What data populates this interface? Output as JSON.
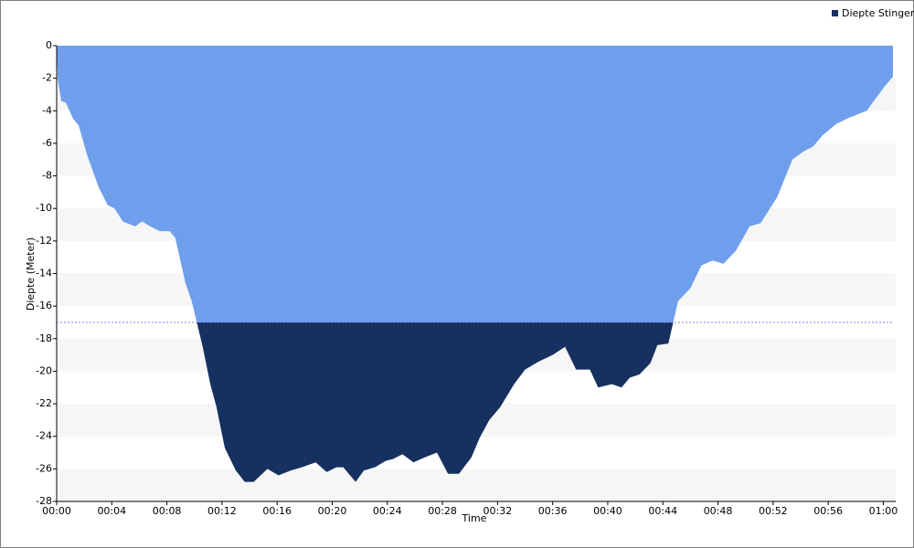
{
  "chart_data": {
    "type": "area",
    "x_label": "Time",
    "y_label": "Diepte (Meter)",
    "x": [
      0,
      0.07,
      0.33,
      0.66,
      1.2,
      1.6,
      2.2,
      3.05,
      3.7,
      4.2,
      4.8,
      5.7,
      6.2,
      6.8,
      7.5,
      8.2,
      8.6,
      8.9,
      9.35,
      9.8,
      10.2,
      10.6,
      11.15,
      11.6,
      12.2,
      13,
      13.65,
      14.3,
      15.3,
      16.1,
      17,
      17.8,
      18.8,
      19.6,
      20.3,
      20.8,
      21.7,
      22.3,
      23.1,
      23.9,
      24.4,
      25.1,
      25.9,
      26.7,
      27.6,
      28.4,
      29.2,
      30.1,
      30.7,
      31.4,
      32.2,
      33.2,
      34,
      35,
      36,
      36.9,
      37.7,
      38.7,
      39.3,
      40.3,
      41,
      41.6,
      42.3,
      43.1,
      43.6,
      44.4,
      45.1,
      46,
      46.8,
      47.6,
      48.4,
      49.3,
      50.3,
      51.1,
      52.3,
      53.4,
      54.2,
      54.9,
      55.6,
      56.6,
      57.6,
      58.8,
      59.4,
      60.1,
      60.7
    ],
    "series": [
      {
        "name": "Diepte Stinger",
        "color": "#6f9fec",
        "below_color": "#16305f",
        "values": [
          0,
          -2,
          -3.4,
          -3.5,
          -4.5,
          -4.9,
          -6.7,
          -8.7,
          -9.8,
          -10,
          -10.8,
          -11.1,
          -10.8,
          -11.1,
          -11.4,
          -11.4,
          -11.8,
          -12.9,
          -14.6,
          -15.7,
          -17.1,
          -18.5,
          -20.8,
          -22.2,
          -24.7,
          -26.1,
          -26.8,
          -26.8,
          -26,
          -26.4,
          -26.1,
          -25.9,
          -25.6,
          -26.2,
          -25.9,
          -25.9,
          -26.8,
          -26.1,
          -25.9,
          -25.5,
          -25.4,
          -25.1,
          -25.6,
          -25.3,
          -25,
          -26.3,
          -26.3,
          -25.3,
          -24.1,
          -23,
          -22.2,
          -20.8,
          -19.9,
          -19.4,
          -19,
          -18.5,
          -19.9,
          -19.9,
          -21,
          -20.8,
          -21,
          -20.4,
          -20.2,
          -19.5,
          -18.4,
          -18.3,
          -15.7,
          -14.9,
          -13.5,
          -13.2,
          -13.4,
          -12.6,
          -11.1,
          -10.9,
          -9.3,
          -7,
          -6.5,
          -6.2,
          -5.5,
          -4.8,
          -4.4,
          -4,
          -3.3,
          -2.5,
          -1.9
        ]
      }
    ],
    "threshold": -17,
    "threshold_color": "#8080ff",
    "xlim": [
      0,
      60.9
    ],
    "xticks": [
      {
        "value": 0,
        "label": "00:00"
      },
      {
        "value": 4,
        "label": "00:04"
      },
      {
        "value": 8,
        "label": "00:08"
      },
      {
        "value": 12,
        "label": "00:12"
      },
      {
        "value": 16,
        "label": "00:16"
      },
      {
        "value": 20,
        "label": "00:20"
      },
      {
        "value": 24,
        "label": "00:24"
      },
      {
        "value": 28,
        "label": "00:28"
      },
      {
        "value": 32,
        "label": "00:32"
      },
      {
        "value": 36,
        "label": "00:36"
      },
      {
        "value": 40,
        "label": "00:40"
      },
      {
        "value": 44,
        "label": "00:44"
      },
      {
        "value": 48,
        "label": "00:48"
      },
      {
        "value": 52,
        "label": "00:52"
      },
      {
        "value": 56,
        "label": "00:56"
      },
      {
        "value": 60,
        "label": "01:00"
      }
    ],
    "ylim": [
      -28,
      0
    ],
    "yticks": [
      0,
      -2,
      -4,
      -6,
      -8,
      -10,
      -12,
      -14,
      -16,
      -18,
      -20,
      -22,
      -24,
      -26,
      -28
    ],
    "grid": "bands",
    "band_color": "#f6f6f6",
    "legend": "top-right"
  }
}
